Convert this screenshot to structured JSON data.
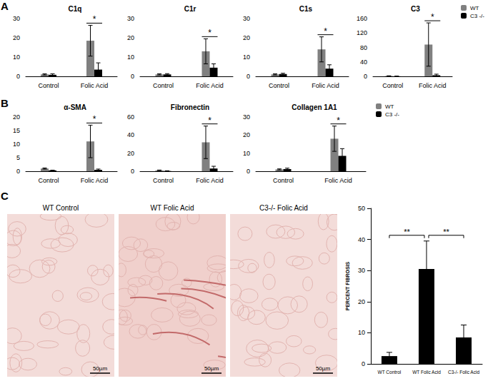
{
  "panels": [
    "A",
    "B",
    "C"
  ],
  "images": [
    {
      "title": "WT Control",
      "scale_bar": "50µm"
    },
    {
      "title": "WT Folic Acid",
      "scale_bar": "50µm"
    },
    {
      "title": "C3-/- Folic Acid",
      "scale_bar": "50µm"
    }
  ],
  "chart_data": [
    {
      "type": "bar",
      "panel": "A",
      "title": "C1q",
      "categories": [
        "Control",
        "Folic Acid"
      ],
      "series": [
        {
          "name": "WT",
          "color": "#808080",
          "values": [
            1,
            18.5
          ],
          "error": [
            0.3,
            8
          ]
        },
        {
          "name": "C3 -/-",
          "color": "#000000",
          "values": [
            0.8,
            3.5
          ],
          "error": [
            0.5,
            3.5
          ]
        }
      ],
      "ylim": [
        0,
        30
      ],
      "yticks": [
        0,
        10,
        20,
        30
      ],
      "grid": false,
      "annotations": [
        {
          "text": "*",
          "category": "Folic Acid"
        }
      ]
    },
    {
      "type": "bar",
      "panel": "A",
      "title": "C1r",
      "categories": [
        "Control",
        "Folic Acid"
      ],
      "series": [
        {
          "name": "WT",
          "color": "#808080",
          "values": [
            1,
            13
          ],
          "error": [
            0.3,
            6.5
          ]
        },
        {
          "name": "C3 -/-",
          "color": "#000000",
          "values": [
            1,
            4.5
          ],
          "error": [
            0.4,
            2
          ]
        }
      ],
      "ylim": [
        0,
        30
      ],
      "yticks": [
        0,
        10,
        20,
        30
      ],
      "grid": false,
      "annotations": [
        {
          "text": "*",
          "category": "Folic Acid"
        }
      ]
    },
    {
      "type": "bar",
      "panel": "A",
      "title": "C1s",
      "categories": [
        "Control",
        "Folic Acid"
      ],
      "series": [
        {
          "name": "WT",
          "color": "#808080",
          "values": [
            1,
            14
          ],
          "error": [
            0.3,
            6.5
          ]
        },
        {
          "name": "C3 -/-",
          "color": "#000000",
          "values": [
            1.2,
            4
          ],
          "error": [
            0.4,
            2
          ]
        }
      ],
      "ylim": [
        0,
        30
      ],
      "yticks": [
        0,
        10,
        20,
        30
      ],
      "grid": false,
      "annotations": [
        {
          "text": "*",
          "category": "Folic Acid"
        }
      ]
    },
    {
      "type": "bar",
      "panel": "A",
      "title": "C3",
      "categories": [
        "Control",
        "Folic Acid"
      ],
      "series": [
        {
          "name": "WT",
          "color": "#808080",
          "values": [
            1,
            88
          ],
          "error": [
            0.5,
            60
          ]
        },
        {
          "name": "C3 -/-",
          "color": "#000000",
          "values": [
            0.3,
            3
          ],
          "error": [
            0.2,
            3
          ]
        }
      ],
      "ylim": [
        0,
        160
      ],
      "yticks": [
        0,
        40,
        80,
        120,
        160
      ],
      "grid": false,
      "legend": "top right",
      "annotations": [
        {
          "text": "*",
          "category": "Folic Acid"
        }
      ]
    },
    {
      "type": "bar",
      "panel": "B",
      "title": "α-SMA",
      "categories": [
        "Control",
        "Folic Acid"
      ],
      "series": [
        {
          "name": "WT",
          "color": "#808080",
          "values": [
            1,
            11
          ],
          "error": [
            0.2,
            6
          ]
        },
        {
          "name": "C3 -/-",
          "color": "#000000",
          "values": [
            0.3,
            0.5
          ],
          "error": [
            0.1,
            0.3
          ]
        }
      ],
      "ylim": [
        0,
        20
      ],
      "yticks": [
        0,
        5,
        10,
        15,
        20
      ],
      "grid": false,
      "annotations": [
        {
          "text": "*",
          "category": "Folic Acid"
        }
      ]
    },
    {
      "type": "bar",
      "panel": "B",
      "title": "Fibronectin",
      "categories": [
        "Control",
        "Folic Acid"
      ],
      "series": [
        {
          "name": "WT",
          "color": "#808080",
          "values": [
            1,
            32
          ],
          "error": [
            0.3,
            18
          ]
        },
        {
          "name": "C3 -/-",
          "color": "#000000",
          "values": [
            0.3,
            3
          ],
          "error": [
            0.2,
            2.5
          ]
        }
      ],
      "ylim": [
        0,
        60
      ],
      "yticks": [
        0,
        20,
        40,
        60
      ],
      "grid": false,
      "annotations": [
        {
          "text": "*",
          "category": "Folic Acid"
        }
      ]
    },
    {
      "type": "bar",
      "panel": "B",
      "title": "Collagen 1A1",
      "categories": [
        "Control",
        "Folic Acid"
      ],
      "series": [
        {
          "name": "WT",
          "color": "#808080",
          "values": [
            1,
            18
          ],
          "error": [
            0.3,
            7
          ]
        },
        {
          "name": "C3 -/-",
          "color": "#000000",
          "values": [
            1.2,
            8.5
          ],
          "error": [
            0.5,
            4
          ]
        }
      ],
      "ylim": [
        0,
        30
      ],
      "yticks": [
        0,
        10,
        20,
        30
      ],
      "grid": false,
      "legend": "top right",
      "annotations": [
        {
          "text": "*",
          "category": "Folic Acid"
        }
      ]
    },
    {
      "type": "bar",
      "panel": "C",
      "y_label": "PERCENT FIBROSIS",
      "categories": [
        "WT Control",
        "WT Folic Acid",
        "C3-/- Folic Acid"
      ],
      "values": [
        2.5,
        30.5,
        8.5
      ],
      "error": [
        1.2,
        9,
        4
      ],
      "color": "#000000",
      "ylim": [
        0,
        50
      ],
      "yticks": [
        0,
        10,
        20,
        30,
        40,
        50
      ],
      "grid": false,
      "annotations": [
        {
          "text": "**",
          "between": [
            "WT Control",
            "WT Folic Acid"
          ]
        },
        {
          "text": "**",
          "between": [
            "WT Folic Acid",
            "C3-/- Folic Acid"
          ]
        }
      ]
    }
  ]
}
